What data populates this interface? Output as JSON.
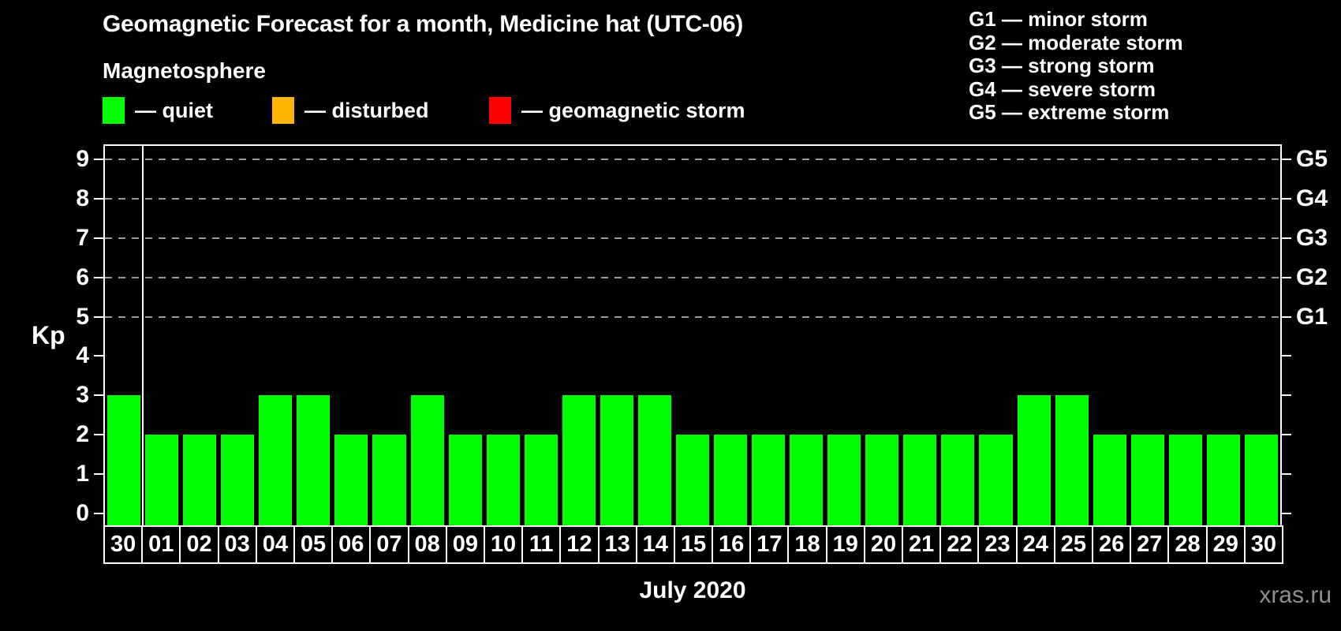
{
  "title": "Geomagnetic Forecast for a month, Medicine hat (UTC-06)",
  "subtitle": "Magnetosphere",
  "legend": {
    "items": [
      {
        "name": "quiet",
        "label": "— quiet",
        "color": "#00ff00"
      },
      {
        "name": "disturbed",
        "label": "— disturbed",
        "color": "#ffb400"
      },
      {
        "name": "geomagnetic-storm",
        "label": "— geomagnetic storm",
        "color": "#ff0000"
      }
    ]
  },
  "g_legend": {
    "lines": [
      "G1 — minor storm",
      "G2 — moderate storm",
      "G3 — strong storm",
      "G4 — severe storm",
      "G5 — extreme storm"
    ]
  },
  "watermark": "xras.ru",
  "chart_data": {
    "type": "bar",
    "title": "Geomagnetic Forecast for a month, Medicine hat (UTC-06)",
    "xlabel": "July 2020",
    "ylabel": "Kp",
    "ylim": [
      0,
      9
    ],
    "yticks": [
      0,
      1,
      2,
      3,
      4,
      5,
      6,
      7,
      8,
      9
    ],
    "grid_levels": [
      5,
      6,
      7,
      8,
      9
    ],
    "grid": "horizontal dashed lines at Kp 5-9 only",
    "legend_position": "top-left",
    "categories": [
      "30",
      "01",
      "02",
      "03",
      "04",
      "05",
      "06",
      "07",
      "08",
      "09",
      "10",
      "11",
      "12",
      "13",
      "14",
      "15",
      "16",
      "17",
      "18",
      "19",
      "20",
      "21",
      "22",
      "23",
      "24",
      "25",
      "26",
      "27",
      "28",
      "29",
      "30"
    ],
    "values": [
      3,
      2,
      2,
      2,
      3,
      3,
      2,
      2,
      3,
      2,
      2,
      2,
      3,
      3,
      3,
      2,
      2,
      2,
      2,
      2,
      2,
      2,
      2,
      2,
      3,
      3,
      2,
      2,
      2,
      2,
      2
    ],
    "bar_color": "#00ff00",
    "separator_after_index": 0,
    "right_axis": [
      {
        "kp": 5,
        "label": "G1"
      },
      {
        "kp": 6,
        "label": "G2"
      },
      {
        "kp": 7,
        "label": "G3"
      },
      {
        "kp": 8,
        "label": "G4"
      },
      {
        "kp": 9,
        "label": "G5"
      }
    ]
  }
}
